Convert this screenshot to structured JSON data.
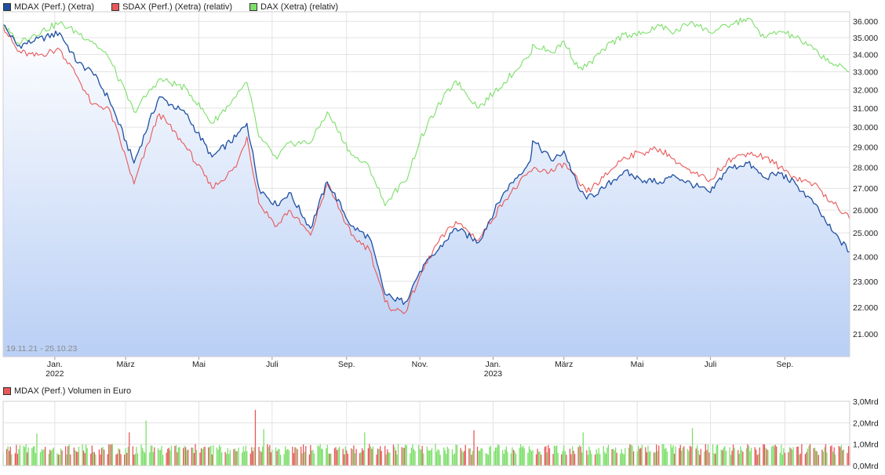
{
  "legend": {
    "series": [
      {
        "label": "MDAX (Perf.) (Xetra)",
        "color": "#1f4fa3"
      },
      {
        "label": "SDAX (Perf.) (Xetra) (relativ)",
        "color": "#e8585a"
      },
      {
        "label": "DAX (Xetra) (relativ)",
        "color": "#7ddf6b"
      }
    ],
    "volume_label": "MDAX (Perf.) Volumen in Euro",
    "volume_color": "#e8585a"
  },
  "date_range": "19.11.21 - 25.10.23",
  "chart_data": [
    {
      "type": "line",
      "title": "",
      "x_tick_labels": [
        {
          "label": "Jan.",
          "sub": "2022"
        },
        {
          "label": "März",
          "sub": ""
        },
        {
          "label": "Mai",
          "sub": ""
        },
        {
          "label": "Juli",
          "sub": ""
        },
        {
          "label": "Sep.",
          "sub": ""
        },
        {
          "label": "Nov.",
          "sub": ""
        },
        {
          "label": "Jan.",
          "sub": "2023"
        },
        {
          "label": "März",
          "sub": ""
        },
        {
          "label": "Mai",
          "sub": ""
        },
        {
          "label": "Juli",
          "sub": ""
        },
        {
          "label": "Sep.",
          "sub": ""
        }
      ],
      "x_tick_dates": [
        "2022-01-01",
        "2022-03-01",
        "2022-05-01",
        "2022-07-01",
        "2022-09-01",
        "2022-11-01",
        "2023-01-01",
        "2023-03-01",
        "2023-05-01",
        "2023-07-01",
        "2023-09-01"
      ],
      "x_range": [
        "2021-11-19",
        "2023-10-25"
      ],
      "y_ticks": [
        21000,
        22000,
        23000,
        24000,
        25000,
        26000,
        27000,
        28000,
        29000,
        30000,
        31000,
        32000,
        33000,
        34000,
        35000,
        36000
      ],
      "y_tick_labels": [
        "21.000",
        "22.000",
        "23.000",
        "24.000",
        "25.000",
        "26.000",
        "27.000",
        "28.000",
        "29.000",
        "30.000",
        "31.000",
        "32.000",
        "33.000",
        "34.000",
        "35.000",
        "36.000"
      ],
      "ylim": [
        20200,
        36600
      ],
      "y_scale": "log",
      "grid": true,
      "legend_position": "top-left",
      "series": [
        {
          "name": "MDAX (Perf.) (Xetra)",
          "color": "#1f4fa3",
          "fill": true,
          "points": [
            [
              "2021-11-19",
              35800
            ],
            [
              "2021-12-01",
              34500
            ],
            [
              "2021-12-15",
              34800
            ],
            [
              "2022-01-05",
              35300
            ],
            [
              "2022-01-20",
              33500
            ],
            [
              "2022-02-01",
              33000
            ],
            [
              "2022-02-15",
              31500
            ],
            [
              "2022-03-08",
              28200
            ],
            [
              "2022-03-29",
              31600
            ],
            [
              "2022-04-20",
              30700
            ],
            [
              "2022-05-12",
              28500
            ],
            [
              "2022-06-01",
              29500
            ],
            [
              "2022-06-10",
              30200
            ],
            [
              "2022-06-20",
              27000
            ],
            [
              "2022-07-05",
              26200
            ],
            [
              "2022-07-15",
              26800
            ],
            [
              "2022-08-02",
              25200
            ],
            [
              "2022-08-16",
              27300
            ],
            [
              "2022-09-05",
              25300
            ],
            [
              "2022-09-20",
              24800
            ],
            [
              "2022-10-03",
              22500
            ],
            [
              "2022-10-10",
              22300
            ],
            [
              "2022-10-20",
              22200
            ],
            [
              "2022-11-01",
              23400
            ],
            [
              "2022-11-15",
              24200
            ],
            [
              "2022-12-01",
              25200
            ],
            [
              "2022-12-20",
              24600
            ],
            [
              "2023-01-10",
              26800
            ],
            [
              "2023-02-01",
              28300
            ],
            [
              "2023-02-03",
              29300
            ],
            [
              "2023-02-20",
              28300
            ],
            [
              "2023-03-01",
              28800
            ],
            [
              "2023-03-13",
              27000
            ],
            [
              "2023-03-20",
              26500
            ],
            [
              "2023-04-03",
              27000
            ],
            [
              "2023-04-20",
              27800
            ],
            [
              "2023-05-04",
              27400
            ],
            [
              "2023-05-20",
              27300
            ],
            [
              "2023-06-01",
              27600
            ],
            [
              "2023-06-15",
              27200
            ],
            [
              "2023-07-01",
              26800
            ],
            [
              "2023-07-15",
              27900
            ],
            [
              "2023-08-01",
              28200
            ],
            [
              "2023-08-15",
              27500
            ],
            [
              "2023-08-28",
              27700
            ],
            [
              "2023-09-10",
              27200
            ],
            [
              "2023-09-25",
              26300
            ],
            [
              "2023-10-10",
              25100
            ],
            [
              "2023-10-25",
              24200
            ]
          ]
        },
        {
          "name": "SDAX (Perf.) (Xetra) (relativ)",
          "color": "#e8585a",
          "fill": false,
          "points": [
            [
              "2021-11-19",
              35700
            ],
            [
              "2021-12-01",
              34200
            ],
            [
              "2021-12-15",
              33900
            ],
            [
              "2022-01-05",
              34300
            ],
            [
              "2022-01-20",
              32700
            ],
            [
              "2022-02-01",
              31200
            ],
            [
              "2022-02-15",
              31000
            ],
            [
              "2022-03-08",
              27200
            ],
            [
              "2022-03-29",
              30700
            ],
            [
              "2022-04-20",
              29000
            ],
            [
              "2022-05-12",
              27000
            ],
            [
              "2022-06-01",
              28000
            ],
            [
              "2022-06-10",
              29500
            ],
            [
              "2022-06-20",
              26300
            ],
            [
              "2022-07-05",
              25300
            ],
            [
              "2022-07-15",
              26000
            ],
            [
              "2022-08-02",
              24900
            ],
            [
              "2022-08-16",
              27200
            ],
            [
              "2022-09-05",
              24900
            ],
            [
              "2022-09-20",
              24300
            ],
            [
              "2022-10-03",
              22200
            ],
            [
              "2022-10-10",
              21900
            ],
            [
              "2022-10-20",
              21800
            ],
            [
              "2022-11-01",
              23200
            ],
            [
              "2022-11-15",
              24500
            ],
            [
              "2022-12-01",
              25500
            ],
            [
              "2022-12-20",
              24700
            ],
            [
              "2023-01-10",
              26400
            ],
            [
              "2023-02-01",
              27800
            ],
            [
              "2023-02-03",
              27900
            ],
            [
              "2023-02-20",
              27800
            ],
            [
              "2023-03-01",
              28200
            ],
            [
              "2023-03-13",
              27300
            ],
            [
              "2023-03-20",
              26800
            ],
            [
              "2023-04-03",
              27500
            ],
            [
              "2023-04-20",
              28500
            ],
            [
              "2023-05-04",
              28700
            ],
            [
              "2023-05-20",
              28900
            ],
            [
              "2023-06-01",
              28400
            ],
            [
              "2023-06-15",
              27700
            ],
            [
              "2023-07-01",
              27400
            ],
            [
              "2023-07-15",
              28300
            ],
            [
              "2023-08-01",
              28700
            ],
            [
              "2023-08-15",
              28500
            ],
            [
              "2023-08-28",
              28000
            ],
            [
              "2023-09-10",
              27500
            ],
            [
              "2023-09-25",
              27200
            ],
            [
              "2023-10-10",
              26400
            ],
            [
              "2023-10-25",
              25600
            ]
          ]
        },
        {
          "name": "DAX (Xetra) (relativ)",
          "color": "#7ddf6b",
          "fill": false,
          "points": [
            [
              "2021-11-19",
              35800
            ],
            [
              "2021-12-01",
              34700
            ],
            [
              "2021-12-15",
              35200
            ],
            [
              "2022-01-05",
              35900
            ],
            [
              "2022-01-20",
              35300
            ],
            [
              "2022-02-01",
              34800
            ],
            [
              "2022-02-15",
              33800
            ],
            [
              "2022-03-08",
              30800
            ],
            [
              "2022-03-29",
              32600
            ],
            [
              "2022-04-20",
              32100
            ],
            [
              "2022-05-12",
              30200
            ],
            [
              "2022-06-01",
              31600
            ],
            [
              "2022-06-10",
              32400
            ],
            [
              "2022-06-20",
              29500
            ],
            [
              "2022-07-05",
              28400
            ],
            [
              "2022-07-15",
              29200
            ],
            [
              "2022-08-02",
              29200
            ],
            [
              "2022-08-16",
              30800
            ],
            [
              "2022-09-05",
              28600
            ],
            [
              "2022-09-20",
              28000
            ],
            [
              "2022-10-03",
              26200
            ],
            [
              "2022-10-10",
              26800
            ],
            [
              "2022-10-20",
              27300
            ],
            [
              "2022-11-01",
              29300
            ],
            [
              "2022-11-15",
              31000
            ],
            [
              "2022-12-01",
              32500
            ],
            [
              "2022-12-20",
              31000
            ],
            [
              "2023-01-10",
              32400
            ],
            [
              "2023-02-01",
              34000
            ],
            [
              "2023-02-03",
              34600
            ],
            [
              "2023-02-20",
              34100
            ],
            [
              "2023-03-01",
              34800
            ],
            [
              "2023-03-13",
              33200
            ],
            [
              "2023-03-20",
              33300
            ],
            [
              "2023-04-03",
              34300
            ],
            [
              "2023-04-20",
              35200
            ],
            [
              "2023-05-04",
              35200
            ],
            [
              "2023-05-20",
              35700
            ],
            [
              "2023-06-01",
              35300
            ],
            [
              "2023-06-15",
              36000
            ],
            [
              "2023-07-01",
              35300
            ],
            [
              "2023-07-15",
              35700
            ],
            [
              "2023-08-01",
              36200
            ],
            [
              "2023-08-15",
              35000
            ],
            [
              "2023-08-28",
              35400
            ],
            [
              "2023-09-10",
              35000
            ],
            [
              "2023-09-25",
              34300
            ],
            [
              "2023-10-10",
              33500
            ],
            [
              "2023-10-25",
              33000
            ]
          ]
        }
      ]
    },
    {
      "type": "bar",
      "title": "MDAX (Perf.) Volumen in Euro",
      "y_ticks": [
        0,
        1,
        2,
        3
      ],
      "y_tick_labels": [
        "0,0Mrd",
        "1,0Mrd",
        "2,0Mrd",
        "3,0Mrd"
      ],
      "ylim": [
        0,
        3
      ],
      "unit": "Mrd",
      "up_color": "#7ddf6b",
      "down_color": "#e8585a",
      "typical_range": [
        0.5,
        1.1
      ],
      "spikes": [
        {
          "date": "2021-12-17",
          "value": 1.5
        },
        {
          "date": "2022-03-04",
          "value": 1.55
        },
        {
          "date": "2022-03-18",
          "value": 2.1
        },
        {
          "date": "2022-06-17",
          "value": 2.6
        },
        {
          "date": "2022-06-24",
          "value": 1.7
        },
        {
          "date": "2022-09-16",
          "value": 1.55
        },
        {
          "date": "2022-12-16",
          "value": 1.65
        },
        {
          "date": "2023-03-17",
          "value": 1.55
        },
        {
          "date": "2023-06-16",
          "value": 1.75
        },
        {
          "date": "2023-09-15",
          "value": 1.0
        }
      ]
    }
  ]
}
